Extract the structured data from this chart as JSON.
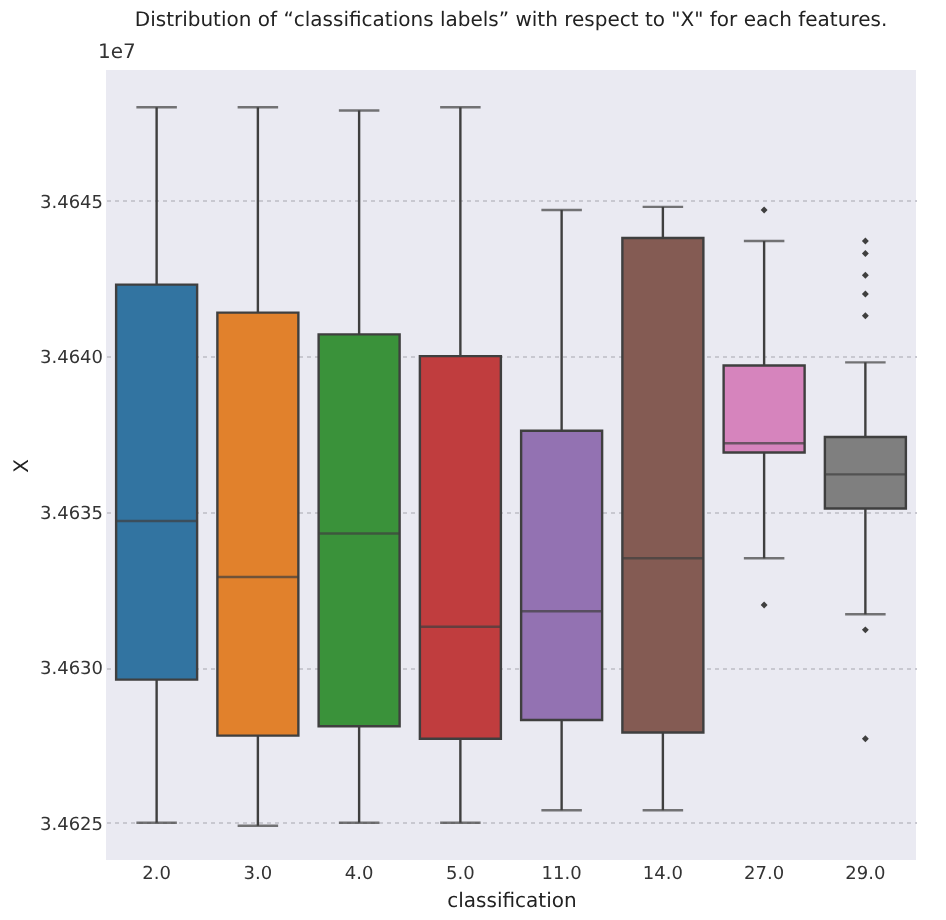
{
  "chart_data": {
    "type": "box",
    "title": "Distribution of “classifications labels” with respect to \"X\" for each features.",
    "xlabel": "classification",
    "ylabel": "X",
    "annotations": [
      "1e7"
    ],
    "categories": [
      "2.0",
      "3.0",
      "4.0",
      "5.0",
      "11.0",
      "14.0",
      "27.0",
      "29.0"
    ],
    "colors": [
      "#3274a1",
      "#e1812c",
      "#3a923a",
      "#c03d3e",
      "#9372b2",
      "#845b53",
      "#d684bd",
      "#7f7f7f"
    ],
    "boxes": [
      {
        "low": 3.4625,
        "q1": 3.46296,
        "median": 3.46347,
        "q3": 3.46423,
        "high": 3.4648
      },
      {
        "low": 3.46249,
        "q1": 3.46278,
        "median": 3.46329,
        "q3": 3.46414,
        "high": 3.4648
      },
      {
        "low": 3.4625,
        "q1": 3.46281,
        "median": 3.46343,
        "q3": 3.46407,
        "high": 3.46479
      },
      {
        "low": 3.4625,
        "q1": 3.46277,
        "median": 3.46313,
        "q3": 3.464,
        "high": 3.4648
      },
      {
        "low": 3.46254,
        "q1": 3.46283,
        "median": 3.46318,
        "q3": 3.46376,
        "high": 3.46447
      },
      {
        "low": 3.46254,
        "q1": 3.46279,
        "median": 3.46335,
        "q3": 3.46438,
        "high": 3.46448
      },
      {
        "low": 3.46335,
        "q1": 3.46369,
        "median": 3.46372,
        "q3": 3.46397,
        "high": 3.46437,
        "outliers": [
          3.46447,
          3.4632
        ]
      },
      {
        "low": 3.46317,
        "q1": 3.46351,
        "median": 3.46362,
        "q3": 3.46374,
        "high": 3.46398,
        "outliers": [
          3.46437,
          3.46433,
          3.46426,
          3.4642,
          3.46413,
          3.46312,
          3.46277
        ]
      }
    ],
    "ylim": [
      3.46238,
      3.46492
    ],
    "yticks": [
      3.4625,
      {
        "value": 3.463,
        "label": "3.4630"
      },
      3.4635,
      {
        "value": 3.464,
        "label": "3.4640"
      },
      3.4645
    ],
    "grid": "y"
  }
}
